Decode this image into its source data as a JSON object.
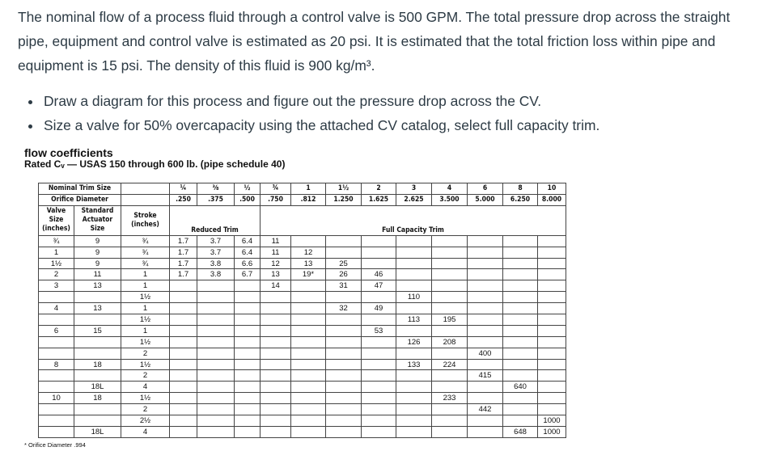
{
  "problem": {
    "paragraph": "The nominal flow of a process fluid through a control valve is 500 GPM. The total pressure drop across the straight pipe, equipment and control valve is estimated as 20 psi. It is estimated that the total friction loss within pipe and equipment is 15 psi. The density of this fluid is 900 kg/m³.",
    "bullets": [
      "Draw a diagram for this process and figure out the pressure drop across the CV.",
      "Size a valve for 50% overcapacity using the attached CV catalog, select full capacity trim."
    ]
  },
  "catalog": {
    "title": "flow coefficients",
    "subtitle": "Rated Cᵥ — USAS 150 through 600 lb. (pipe schedule 40)",
    "nominal_trim_label": "Nominal Trim Size",
    "orifice_label": "Orifice Diameter",
    "trim_sizes": [
      "¼",
      "⅜",
      "½",
      "¾",
      "1",
      "1½",
      "2",
      "3",
      "4",
      "6",
      "8",
      "10"
    ],
    "orifice_diameters": [
      ".250",
      ".375",
      ".500",
      ".750",
      ".812",
      "1.250",
      "1.625",
      "2.625",
      "3.500",
      "5.000",
      "6.250",
      "8.000"
    ],
    "col_valve_size": "Valve Size (inches)",
    "col_actuator": "Standard Actuator Size",
    "col_stroke": "Stroke (inches)",
    "reduced_trim_label": "Reduced Trim",
    "full_trim_label": "Full Capacity Trim",
    "rows": [
      {
        "valve": "¾",
        "actuator": "9",
        "stroke": "¾",
        "cv": [
          "1.7",
          "3.7",
          "6.4",
          "11",
          "",
          "",
          "",
          "",
          "",
          "",
          "",
          ""
        ]
      },
      {
        "valve": "1",
        "actuator": "9",
        "stroke": "¾",
        "cv": [
          "1.7",
          "3.7",
          "6.4",
          "11",
          "12",
          "",
          "",
          "",
          "",
          "",
          "",
          ""
        ]
      },
      {
        "valve": "1½",
        "actuator": "9",
        "stroke": "¾",
        "cv": [
          "1.7",
          "3.8",
          "6.6",
          "12",
          "13",
          "25",
          "",
          "",
          "",
          "",
          "",
          ""
        ]
      },
      {
        "valve": "2",
        "actuator": "11",
        "stroke": "1",
        "cv": [
          "1.7",
          "3.8",
          "6.7",
          "13",
          "19*",
          "26",
          "46",
          "",
          "",
          "",
          "",
          ""
        ]
      },
      {
        "valve": "3",
        "actuator": "13",
        "stroke": "1",
        "cv": [
          "",
          "",
          "",
          "14",
          "",
          "31",
          "47",
          "",
          "",
          "",
          "",
          ""
        ]
      },
      {
        "valve": "",
        "actuator": "",
        "stroke": "1½",
        "cv": [
          "",
          "",
          "",
          "",
          "",
          "",
          "",
          "110",
          "",
          "",
          "",
          ""
        ]
      },
      {
        "valve": "4",
        "actuator": "13",
        "stroke": "1",
        "cv": [
          "",
          "",
          "",
          "",
          "",
          "32",
          "49",
          "",
          "",
          "",
          "",
          ""
        ]
      },
      {
        "valve": "",
        "actuator": "",
        "stroke": "1½",
        "cv": [
          "",
          "",
          "",
          "",
          "",
          "",
          "",
          "113",
          "195",
          "",
          "",
          ""
        ]
      },
      {
        "valve": "6",
        "actuator": "15",
        "stroke": "1",
        "cv": [
          "",
          "",
          "",
          "",
          "",
          "",
          "53",
          "",
          "",
          "",
          "",
          ""
        ]
      },
      {
        "valve": "",
        "actuator": "",
        "stroke": "1½",
        "cv": [
          "",
          "",
          "",
          "",
          "",
          "",
          "",
          "126",
          "208",
          "",
          "",
          ""
        ]
      },
      {
        "valve": "",
        "actuator": "",
        "stroke": "2",
        "cv": [
          "",
          "",
          "",
          "",
          "",
          "",
          "",
          "",
          "",
          "400",
          "",
          ""
        ]
      },
      {
        "valve": "8",
        "actuator": "18",
        "stroke": "1½",
        "cv": [
          "",
          "",
          "",
          "",
          "",
          "",
          "",
          "133",
          "224",
          "",
          "",
          ""
        ]
      },
      {
        "valve": "",
        "actuator": "",
        "stroke": "2",
        "cv": [
          "",
          "",
          "",
          "",
          "",
          "",
          "",
          "",
          "",
          "415",
          "",
          ""
        ]
      },
      {
        "valve": "",
        "actuator": "18L",
        "stroke": "4",
        "cv": [
          "",
          "",
          "",
          "",
          "",
          "",
          "",
          "",
          "",
          "",
          "640",
          ""
        ]
      },
      {
        "valve": "10",
        "actuator": "18",
        "stroke": "1½",
        "cv": [
          "",
          "",
          "",
          "",
          "",
          "",
          "",
          "",
          "233",
          "",
          "",
          ""
        ]
      },
      {
        "valve": "",
        "actuator": "",
        "stroke": "2",
        "cv": [
          "",
          "",
          "",
          "",
          "",
          "",
          "",
          "",
          "",
          "442",
          "",
          ""
        ]
      },
      {
        "valve": "",
        "actuator": "",
        "stroke": "2½",
        "cv": [
          "",
          "",
          "",
          "",
          "",
          "",
          "",
          "",
          "",
          "",
          "",
          "1000"
        ]
      },
      {
        "valve": "",
        "actuator": "18L",
        "stroke": "4",
        "cv": [
          "",
          "",
          "",
          "",
          "",
          "",
          "",
          "",
          "",
          "",
          "648",
          "1000"
        ]
      }
    ],
    "footnote": "* Orifice Diameter .994"
  }
}
